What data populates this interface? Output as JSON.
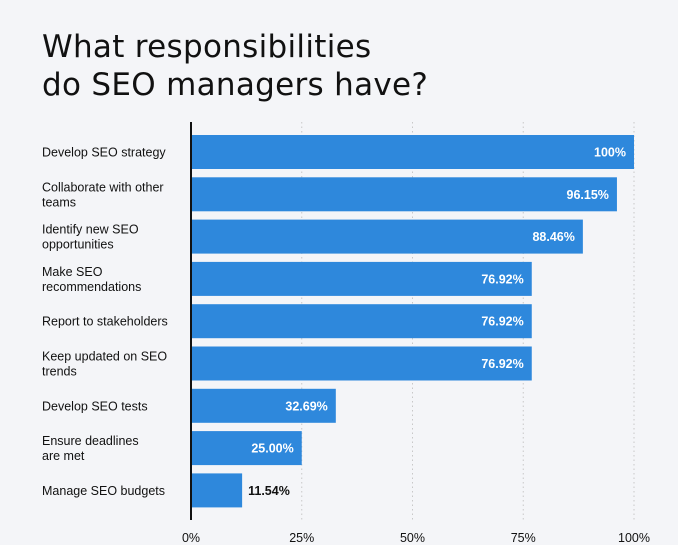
{
  "title": {
    "line1": "What responsibilities",
    "line2": "do SEO managers have?"
  },
  "colors": {
    "bar": "#2e88dc",
    "background": "#f4f5f8",
    "text": "#111111",
    "inside_label": "#ffffff",
    "grid": "#c8c8c8"
  },
  "chart_data": {
    "type": "bar",
    "orientation": "horizontal",
    "categories": [
      [
        "Develop SEO strategy"
      ],
      [
        "Collaborate with other",
        "teams"
      ],
      [
        "Identify new SEO",
        "opportunities"
      ],
      [
        "Make SEO",
        "recommendations"
      ],
      [
        "Report to stakeholders"
      ],
      [
        "Keep updated on SEO",
        "trends"
      ],
      [
        "Develop SEO tests"
      ],
      [
        "Ensure deadlines",
        "are met"
      ],
      [
        "Manage SEO budgets"
      ]
    ],
    "values": [
      100,
      96.15,
      88.46,
      76.92,
      76.92,
      76.92,
      32.69,
      25.0,
      11.54
    ],
    "value_labels": [
      "100%",
      "96.15%",
      "88.46%",
      "76.92%",
      "76.92%",
      "76.92%",
      "32.69%",
      "25.00%",
      "11.54%"
    ],
    "xlim": [
      0,
      100
    ],
    "xticks": [
      0,
      25,
      50,
      75,
      100
    ],
    "xtick_labels": [
      "0%",
      "25%",
      "50%",
      "75%",
      "100%"
    ],
    "grid": "vertical dotted",
    "legend": "none"
  }
}
